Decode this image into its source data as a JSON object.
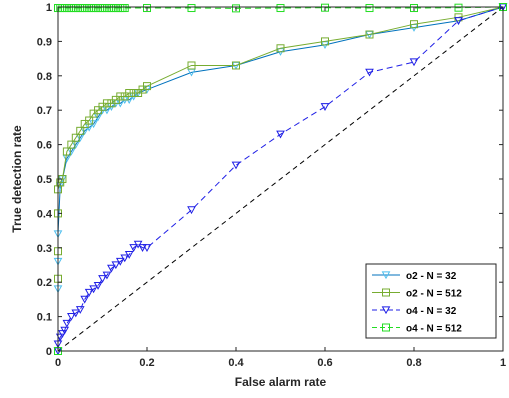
{
  "chart_data": {
    "type": "line",
    "xlabel": "False alarm rate",
    "ylabel": "True detection rate",
    "xlim": [
      0,
      1
    ],
    "ylim": [
      0,
      1
    ],
    "xticks": [
      "0",
      "0.2",
      "0.4",
      "0.6",
      "0.8",
      "1"
    ],
    "xtick_values": [
      0,
      0.2,
      0.4,
      0.6,
      0.8,
      1
    ],
    "yticks": [
      "0",
      "0.1",
      "0.2",
      "0.3",
      "0.4",
      "0.5",
      "0.6",
      "0.7",
      "0.8",
      "0.9",
      "1"
    ],
    "ytick_values": [
      0,
      0.1,
      0.2,
      0.3,
      0.4,
      0.5,
      0.6,
      0.7,
      0.8,
      0.9,
      1
    ],
    "grid": false,
    "legend_position": "bottom-right",
    "reference_line": {
      "x": [
        0,
        1
      ],
      "y": [
        0,
        1
      ],
      "color": "#000000",
      "style": "dashed"
    },
    "series": [
      {
        "name": "o2 - N = 32",
        "color": "#0072BD",
        "marker_color": "#4DBEEE",
        "marker": "triangle-down",
        "style": "solid",
        "x": [
          0,
          0,
          0,
          0,
          0.005,
          0.01,
          0.02,
          0.03,
          0.04,
          0.05,
          0.06,
          0.07,
          0.08,
          0.09,
          0.1,
          0.11,
          0.12,
          0.13,
          0.14,
          0.15,
          0.16,
          0.17,
          0.18,
          0.2,
          0.3,
          0.4,
          0.5,
          0.6,
          0.7,
          0.8,
          0.9,
          1
        ],
        "y": [
          0,
          0.18,
          0.26,
          0.34,
          0.48,
          0.5,
          0.56,
          0.58,
          0.6,
          0.62,
          0.64,
          0.65,
          0.66,
          0.68,
          0.7,
          0.7,
          0.71,
          0.72,
          0.72,
          0.73,
          0.73,
          0.74,
          0.75,
          0.76,
          0.81,
          0.83,
          0.87,
          0.89,
          0.92,
          0.94,
          0.96,
          1
        ]
      },
      {
        "name": "o2 - N = 512",
        "color": "#77AC30",
        "marker_color": "#77AC30",
        "marker": "square",
        "style": "solid",
        "x": [
          0,
          0,
          0,
          0,
          0,
          0.005,
          0.01,
          0.02,
          0.03,
          0.04,
          0.05,
          0.06,
          0.07,
          0.08,
          0.09,
          0.1,
          0.11,
          0.12,
          0.13,
          0.14,
          0.15,
          0.16,
          0.17,
          0.18,
          0.19,
          0.2,
          0.3,
          0.4,
          0.5,
          0.6,
          0.7,
          0.8,
          0.9,
          1
        ],
        "y": [
          0,
          0.21,
          0.29,
          0.4,
          0.47,
          0.49,
          0.5,
          0.58,
          0.6,
          0.62,
          0.64,
          0.66,
          0.67,
          0.69,
          0.7,
          0.71,
          0.72,
          0.72,
          0.73,
          0.74,
          0.74,
          0.75,
          0.75,
          0.75,
          0.76,
          0.77,
          0.83,
          0.83,
          0.88,
          0.9,
          0.92,
          0.95,
          0.97,
          1
        ]
      },
      {
        "name": "o4 - N = 32",
        "color": "#1F1FE6",
        "marker_color": "#1F1FE6",
        "marker": "triangle-down",
        "style": "dashed",
        "x": [
          0,
          0,
          0.005,
          0.01,
          0.015,
          0.02,
          0.03,
          0.04,
          0.05,
          0.06,
          0.07,
          0.08,
          0.09,
          0.1,
          0.11,
          0.12,
          0.13,
          0.14,
          0.15,
          0.16,
          0.17,
          0.18,
          0.19,
          0.2,
          0.3,
          0.4,
          0.5,
          0.6,
          0.7,
          0.8,
          0.9,
          1
        ],
        "y": [
          0,
          0.02,
          0.04,
          0.05,
          0.06,
          0.08,
          0.1,
          0.11,
          0.12,
          0.15,
          0.17,
          0.18,
          0.19,
          0.21,
          0.22,
          0.24,
          0.25,
          0.26,
          0.27,
          0.28,
          0.3,
          0.31,
          0.3,
          0.3,
          0.41,
          0.54,
          0.63,
          0.71,
          0.81,
          0.84,
          0.96,
          1
        ]
      },
      {
        "name": "o4 - N = 512",
        "color": "#22DD22",
        "marker_color": "#22DD22",
        "marker": "square",
        "style": "dashed",
        "x": [
          0,
          0,
          0.005,
          0.01,
          0.015,
          0.02,
          0.025,
          0.03,
          0.035,
          0.04,
          0.045,
          0.05,
          0.055,
          0.06,
          0.065,
          0.07,
          0.075,
          0.08,
          0.085,
          0.09,
          0.095,
          0.1,
          0.105,
          0.11,
          0.115,
          0.12,
          0.125,
          0.13,
          0.135,
          0.14,
          0.145,
          0.15,
          0.2,
          0.3,
          0.4,
          0.5,
          0.6,
          0.7,
          0.8,
          0.9,
          1
        ],
        "y": [
          0,
          0.997,
          0.997,
          0.997,
          0.997,
          0.997,
          0.997,
          0.997,
          0.997,
          0.997,
          0.997,
          0.997,
          0.997,
          0.997,
          0.997,
          0.997,
          0.997,
          0.997,
          0.997,
          0.997,
          0.997,
          0.997,
          0.997,
          0.997,
          0.997,
          0.997,
          0.997,
          0.997,
          0.997,
          0.997,
          0.997,
          0.997,
          0.997,
          0.997,
          0.996,
          0.997,
          0.998,
          0.997,
          0.997,
          0.998,
          1
        ]
      }
    ]
  }
}
